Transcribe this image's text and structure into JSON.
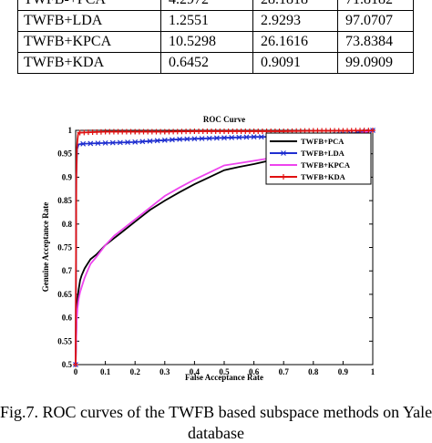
{
  "table": {
    "rows": [
      [
        "TWFB-+PCA",
        "4.2972",
        "28.1818",
        "71.8182"
      ],
      [
        "TWFB+LDA",
        "1.2551",
        "2.9293",
        "97.0707"
      ],
      [
        "TWFB+KPCA",
        "10.5298",
        "26.1616",
        "73.8384"
      ],
      [
        "TWFB+KDA",
        "0.6452",
        "0.9091",
        "99.0909"
      ]
    ]
  },
  "chart_data": {
    "type": "line",
    "title": "ROC Curve",
    "xlabel": "False Acceptance Rate",
    "ylabel": "Genuine Acceptance  Rate",
    "xlim": [
      0,
      1
    ],
    "ylim": [
      0.5,
      1
    ],
    "x_ticks": [
      "0",
      "0.1",
      "0.2",
      "0.3",
      "0.4",
      "0.5",
      "0.6",
      "0.7",
      "0.8",
      "0.9",
      "1"
    ],
    "y_ticks": [
      "0.5",
      "0.55",
      "0.6",
      "0.65",
      "0.7",
      "0.75",
      "0.8",
      "0.85",
      "0.9",
      "0.95",
      "1"
    ],
    "grid": false,
    "legend_position": "top-right",
    "series": [
      {
        "name": "TWFB+PCA",
        "color": "#000000",
        "marker": "none",
        "x": [
          0,
          0.003,
          0.006,
          0.01,
          0.015,
          0.02,
          0.03,
          0.04,
          0.05,
          0.07,
          0.1,
          0.13,
          0.16,
          0.2,
          0.25,
          0.3,
          0.35,
          0.4,
          0.45,
          0.5,
          0.55,
          0.6,
          0.65,
          0.7,
          0.75,
          0.8,
          0.85,
          0.9,
          0.95,
          1.0
        ],
        "y": [
          0.5,
          0.6,
          0.64,
          0.66,
          0.68,
          0.69,
          0.705,
          0.715,
          0.725,
          0.735,
          0.755,
          0.77,
          0.785,
          0.805,
          0.83,
          0.85,
          0.868,
          0.885,
          0.9,
          0.915,
          0.922,
          0.928,
          0.935,
          0.945,
          0.955,
          0.965,
          0.975,
          0.985,
          0.992,
          1.0
        ]
      },
      {
        "name": "TWFB+LDA",
        "color": "#1f2fd0",
        "marker": "x",
        "x": [
          0,
          0.002,
          0.005,
          0.01,
          0.02,
          0.05,
          0.1,
          0.15,
          0.2,
          0.25,
          0.3,
          0.35,
          0.4,
          0.45,
          0.5,
          0.55,
          0.6,
          0.65,
          0.7,
          0.75,
          0.8,
          0.85,
          0.9,
          0.95,
          1.0
        ],
        "y": [
          0.5,
          0.9,
          0.96,
          0.97,
          0.971,
          0.972,
          0.973,
          0.974,
          0.975,
          0.977,
          0.979,
          0.981,
          0.982,
          0.983,
          0.984,
          0.985,
          0.986,
          0.986,
          0.987,
          0.988,
          0.989,
          0.99,
          0.992,
          0.995,
          1.0
        ]
      },
      {
        "name": "TWFB+KPCA",
        "color": "#ee44ee",
        "marker": "none",
        "x": [
          0,
          0.003,
          0.006,
          0.01,
          0.015,
          0.02,
          0.03,
          0.04,
          0.05,
          0.07,
          0.1,
          0.13,
          0.16,
          0.2,
          0.25,
          0.3,
          0.35,
          0.4,
          0.45,
          0.5,
          0.55,
          0.6,
          0.65,
          0.7,
          0.75,
          0.8,
          0.85,
          0.9,
          0.95,
          1.0
        ],
        "y": [
          0.5,
          0.59,
          0.62,
          0.64,
          0.655,
          0.665,
          0.685,
          0.7,
          0.715,
          0.73,
          0.755,
          0.775,
          0.79,
          0.81,
          0.835,
          0.86,
          0.878,
          0.895,
          0.91,
          0.925,
          0.93,
          0.935,
          0.94,
          0.95,
          0.96,
          0.97,
          0.978,
          0.986,
          0.993,
          1.0
        ]
      },
      {
        "name": "TWFB+KDA",
        "color": "#e01010",
        "marker": "+",
        "x": [
          0,
          0.002,
          0.004,
          0.006,
          0.008,
          0.01,
          0.05,
          0.1,
          0.2,
          0.3,
          0.4,
          0.5,
          0.6,
          0.7,
          0.8,
          0.9,
          1.0
        ],
        "y": [
          0.5,
          0.9,
          0.96,
          0.98,
          0.99,
          0.995,
          0.996,
          0.997,
          0.997,
          0.997,
          0.998,
          0.998,
          0.998,
          0.998,
          0.999,
          0.999,
          1.0
        ]
      }
    ]
  },
  "caption": {
    "line1": "Fig.7. ROC curves of the TWFB based subspace methods on Yale",
    "line2": "database"
  }
}
